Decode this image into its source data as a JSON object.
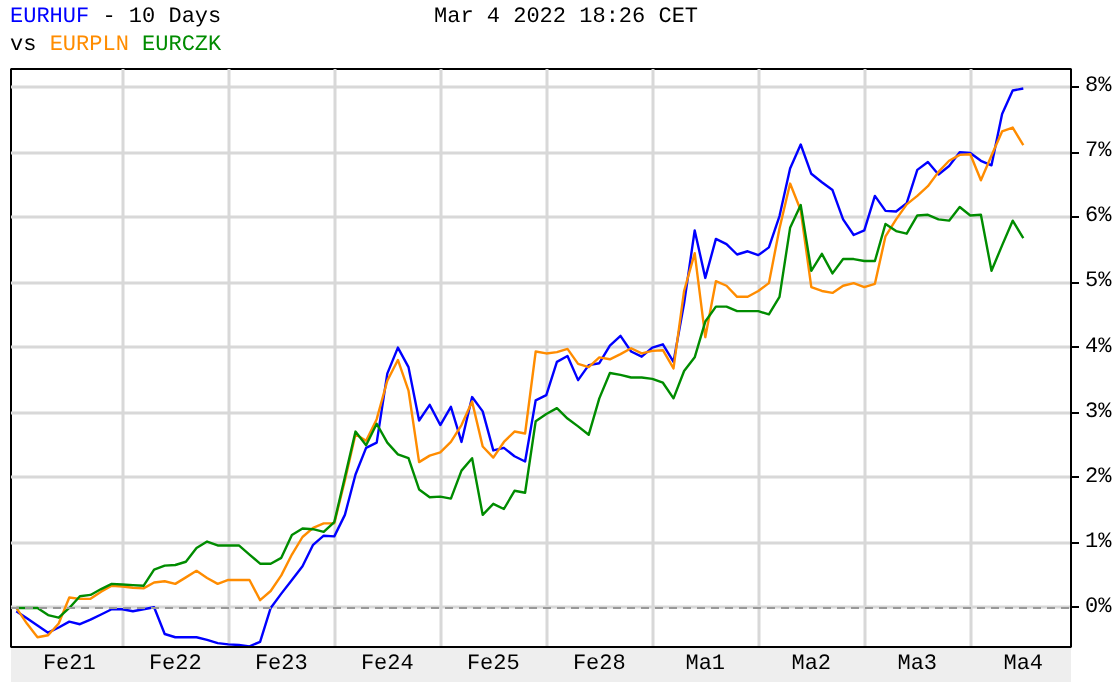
{
  "chart_data": {
    "type": "line",
    "title": "- 10 Days",
    "subtitle": "Mar 4 2022 18:26 CET",
    "annotations": [
      "vs"
    ],
    "categories": [
      null,
      null,
      null,
      null,
      null,
      "Fe21",
      null,
      null,
      null,
      null,
      null,
      null,
      null,
      null,
      null,
      "Fe22",
      null,
      null,
      null,
      null,
      null,
      null,
      null,
      null,
      null,
      "Fe23",
      null,
      null,
      null,
      null,
      null,
      null,
      null,
      null,
      null,
      "Fe24",
      null,
      null,
      null,
      null,
      null,
      null,
      null,
      null,
      null,
      "Fe25",
      null,
      null,
      null,
      null,
      null,
      null,
      null,
      null,
      null,
      "Fe28",
      null,
      null,
      null,
      null,
      null,
      null,
      null,
      null,
      null,
      "Ma1",
      null,
      null,
      null,
      null,
      null,
      null,
      null,
      null,
      null,
      "Ma2",
      null,
      null,
      null,
      null,
      null,
      null,
      null,
      null,
      null,
      "Ma3",
      null,
      null,
      null,
      null,
      null,
      null,
      null,
      null,
      null,
      "Ma4",
      null,
      null,
      null,
      null
    ],
    "ylim": [
      -0.6,
      8.28
    ],
    "yticks": [
      {
        "value": 0,
        "label": "0%"
      },
      {
        "value": 1,
        "label": "1%"
      },
      {
        "value": 2,
        "label": "2%"
      },
      {
        "value": 3,
        "label": "3%"
      },
      {
        "value": 4,
        "label": "4%"
      },
      {
        "value": 5,
        "label": "5%"
      },
      {
        "value": 6,
        "label": "6%"
      },
      {
        "value": 7,
        "label": "7%"
      },
      {
        "value": 8,
        "label": "8%"
      }
    ],
    "grid": true,
    "legend": "top left",
    "ref_lines": [
      {
        "axis": "y",
        "value": 0,
        "label": null,
        "color": "#999999",
        "line_style": "dashed"
      }
    ],
    "series": [
      {
        "name": "EURHUF",
        "color": "#0000ff",
        "values": [
          -0.05,
          -0.16,
          -0.27,
          -0.38,
          -0.3,
          -0.21,
          -0.25,
          -0.18,
          -0.1,
          -0.02,
          -0.02,
          -0.05,
          -0.02,
          0.01,
          -0.4,
          -0.45,
          -0.45,
          -0.45,
          -0.49,
          -0.54,
          -0.56,
          -0.57,
          -0.59,
          -0.52,
          0.0,
          0.22,
          0.43,
          0.64,
          0.97,
          1.11,
          1.1,
          1.43,
          2.05,
          2.46,
          2.54,
          3.6,
          4.0,
          3.7,
          2.88,
          3.12,
          2.81,
          3.09,
          2.55,
          3.24,
          3.02,
          2.42,
          2.46,
          2.33,
          2.25,
          3.19,
          3.27,
          3.78,
          3.87,
          3.5,
          3.73,
          3.76,
          4.03,
          4.18,
          3.94,
          3.86,
          4.0,
          4.05,
          3.78,
          4.68,
          5.8,
          5.07,
          5.67,
          5.59,
          5.43,
          5.48,
          5.42,
          5.54,
          6.02,
          6.75,
          7.12,
          6.67,
          6.54,
          6.42,
          5.97,
          5.73,
          5.8,
          6.33,
          6.1,
          6.09,
          6.22,
          6.73,
          6.85,
          6.66,
          6.79,
          7.0,
          6.99,
          6.87,
          6.8,
          7.59,
          7.95,
          7.98,
          null,
          null,
          null,
          null
        ]
      },
      {
        "name": "EURPLN",
        "color": "#ff8c00",
        "values": [
          0.0,
          -0.24,
          -0.45,
          -0.42,
          -0.24,
          0.16,
          0.14,
          0.14,
          0.25,
          0.34,
          0.33,
          0.31,
          0.3,
          0.39,
          0.41,
          0.37,
          0.47,
          0.57,
          0.46,
          0.37,
          0.43,
          0.43,
          0.43,
          0.12,
          0.26,
          0.5,
          0.82,
          1.09,
          1.23,
          1.3,
          1.3,
          1.96,
          2.67,
          2.57,
          2.9,
          3.49,
          3.81,
          3.34,
          2.24,
          2.34,
          2.39,
          2.55,
          2.81,
          3.17,
          2.48,
          2.31,
          2.55,
          2.71,
          2.68,
          3.94,
          3.91,
          3.93,
          3.98,
          3.75,
          3.7,
          3.85,
          3.82,
          3.9,
          3.99,
          3.91,
          3.95,
          3.96,
          3.68,
          4.87,
          5.45,
          4.16,
          5.02,
          4.95,
          4.78,
          4.78,
          4.87,
          4.99,
          5.83,
          6.52,
          6.11,
          4.93,
          4.87,
          4.84,
          4.95,
          4.99,
          4.93,
          4.98,
          5.71,
          5.97,
          6.2,
          6.33,
          6.48,
          6.7,
          6.87,
          6.96,
          6.97,
          6.57,
          6.95,
          7.32,
          7.38,
          7.11,
          null,
          null,
          null,
          null
        ]
      },
      {
        "name": "EURCZK",
        "color": "#008c00",
        "values": [
          0.0,
          0.0,
          0.0,
          -0.11,
          -0.15,
          0.0,
          0.18,
          0.2,
          0.29,
          0.37,
          0.36,
          0.35,
          0.34,
          0.59,
          0.65,
          0.66,
          0.71,
          0.92,
          1.02,
          0.96,
          0.96,
          0.96,
          0.82,
          0.68,
          0.68,
          0.77,
          1.12,
          1.22,
          1.21,
          1.17,
          1.32,
          2.01,
          2.71,
          2.5,
          2.83,
          2.54,
          2.36,
          2.3,
          1.82,
          1.7,
          1.71,
          1.68,
          2.11,
          2.3,
          1.43,
          1.6,
          1.52,
          1.8,
          1.77,
          2.87,
          2.98,
          3.07,
          2.91,
          2.79,
          2.66,
          3.22,
          3.61,
          3.58,
          3.54,
          3.54,
          3.52,
          3.46,
          3.22,
          3.64,
          3.85,
          4.4,
          4.63,
          4.63,
          4.56,
          4.56,
          4.56,
          4.51,
          4.78,
          5.84,
          6.19,
          5.18,
          5.44,
          5.14,
          5.36,
          5.36,
          5.33,
          5.33,
          5.9,
          5.79,
          5.75,
          6.03,
          6.04,
          5.97,
          5.95,
          6.16,
          6.03,
          6.04,
          5.18,
          5.57,
          5.95,
          5.68,
          null,
          null,
          null,
          null
        ]
      }
    ]
  }
}
